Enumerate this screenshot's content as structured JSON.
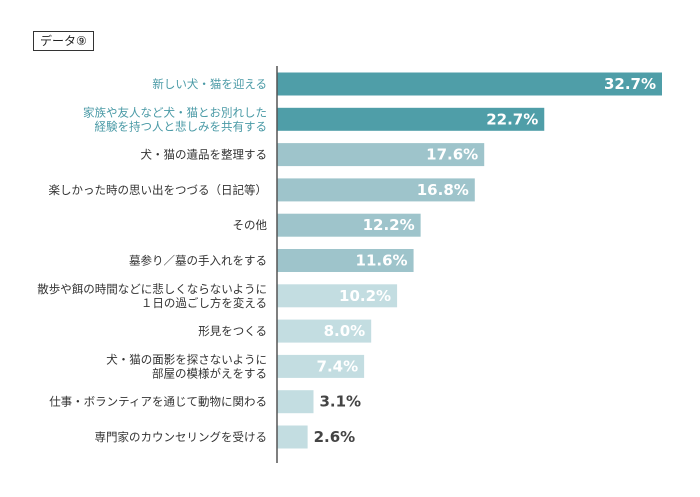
{
  "tag_label": "データ⑨",
  "chart_data": {
    "type": "bar",
    "orientation": "horizontal",
    "categories": [
      [
        "新しい犬・猫を迎える"
      ],
      [
        "家族や友人など犬・猫とお別れした",
        "経験を持つ人と悲しみを共有する"
      ],
      [
        "犬・猫の遺品を整理する"
      ],
      [
        "楽しかった時の思い出をつづる（日記等）"
      ],
      [
        "その他"
      ],
      [
        "墓参り／墓の手入れをする"
      ],
      [
        "散歩や餌の時間などに悲しくならないように",
        "１日の過ごし方を変える"
      ],
      [
        "形見をつくる"
      ],
      [
        "犬・猫の面影を探さないように",
        "部屋の模様がえをする"
      ],
      [
        "仕事・ボランティアを通じて動物に関わる"
      ],
      [
        "専門家のカウンセリングを受ける"
      ]
    ],
    "values": [
      32.7,
      22.7,
      17.6,
      16.8,
      12.2,
      11.6,
      10.2,
      8.0,
      7.4,
      3.1,
      2.6
    ],
    "value_labels": [
      "32.7%",
      "22.7%",
      "17.6%",
      "16.8%",
      "12.2%",
      "11.6%",
      "10.2%",
      "8.0%",
      "7.4%",
      "3.1%",
      "2.6%"
    ],
    "colors": [
      "#4f9ea8",
      "#4f9ea8",
      "#9ec4cb",
      "#9ec4cb",
      "#9ec4cb",
      "#9ec4cb",
      "#c3dde1",
      "#c3dde1",
      "#c3dde1",
      "#c3dde1",
      "#c3dde1"
    ],
    "highlight_label_color": "#4a9aa6",
    "highlighted": [
      0,
      1
    ],
    "xlim": [
      0,
      35
    ]
  }
}
